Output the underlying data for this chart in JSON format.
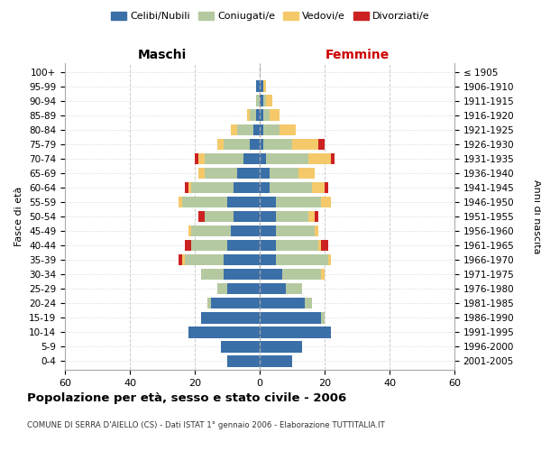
{
  "age_groups": [
    "0-4",
    "5-9",
    "10-14",
    "15-19",
    "20-24",
    "25-29",
    "30-34",
    "35-39",
    "40-44",
    "45-49",
    "50-54",
    "55-59",
    "60-64",
    "65-69",
    "70-74",
    "75-79",
    "80-84",
    "85-89",
    "90-94",
    "95-99",
    "100+"
  ],
  "birth_years": [
    "2001-2005",
    "1996-2000",
    "1991-1995",
    "1986-1990",
    "1981-1985",
    "1976-1980",
    "1971-1975",
    "1966-1970",
    "1961-1965",
    "1956-1960",
    "1951-1955",
    "1946-1950",
    "1941-1945",
    "1936-1940",
    "1931-1935",
    "1926-1930",
    "1921-1925",
    "1916-1920",
    "1911-1915",
    "1906-1910",
    "≤ 1905"
  ],
  "males": {
    "celibe": [
      10,
      12,
      22,
      18,
      15,
      10,
      11,
      11,
      10,
      9,
      8,
      10,
      8,
      7,
      5,
      3,
      2,
      1,
      0,
      1,
      0
    ],
    "coniugato": [
      0,
      0,
      0,
      0,
      1,
      3,
      7,
      12,
      11,
      12,
      9,
      14,
      13,
      10,
      12,
      8,
      5,
      2,
      1,
      0,
      0
    ],
    "vedovo": [
      0,
      0,
      0,
      0,
      0,
      0,
      0,
      1,
      0,
      1,
      0,
      1,
      1,
      2,
      2,
      2,
      2,
      1,
      0,
      0,
      0
    ],
    "divorziato": [
      0,
      0,
      0,
      0,
      0,
      0,
      0,
      1,
      2,
      0,
      2,
      0,
      1,
      0,
      1,
      0,
      0,
      0,
      0,
      0,
      0
    ]
  },
  "females": {
    "nubile": [
      10,
      13,
      22,
      19,
      14,
      8,
      7,
      5,
      5,
      5,
      5,
      5,
      3,
      3,
      2,
      1,
      1,
      1,
      1,
      1,
      0
    ],
    "coniugata": [
      0,
      0,
      0,
      1,
      2,
      5,
      12,
      16,
      13,
      12,
      10,
      14,
      13,
      9,
      13,
      9,
      5,
      2,
      1,
      0,
      0
    ],
    "vedova": [
      0,
      0,
      0,
      0,
      0,
      0,
      1,
      1,
      1,
      1,
      2,
      3,
      4,
      5,
      7,
      8,
      5,
      3,
      2,
      1,
      0
    ],
    "divorziata": [
      0,
      0,
      0,
      0,
      0,
      0,
      0,
      0,
      2,
      0,
      1,
      0,
      1,
      0,
      1,
      2,
      0,
      0,
      0,
      0,
      0
    ]
  },
  "colors": {
    "celibe": "#3a6fa8",
    "coniugato": "#b5c9a0",
    "vedovo": "#f5c96a",
    "divorziato": "#cc2222"
  },
  "xlim": 60,
  "title": "Popolazione per età, sesso e stato civile - 2006",
  "subtitle": "COMUNE DI SERRA D'AIELLO (CS) - Dati ISTAT 1° gennaio 2006 - Elaborazione TUTTITALIA.IT",
  "ylabel_left": "Fasce di età",
  "ylabel_right": "Anni di nascita",
  "xlabel_left": "Maschi",
  "xlabel_right": "Femmine"
}
